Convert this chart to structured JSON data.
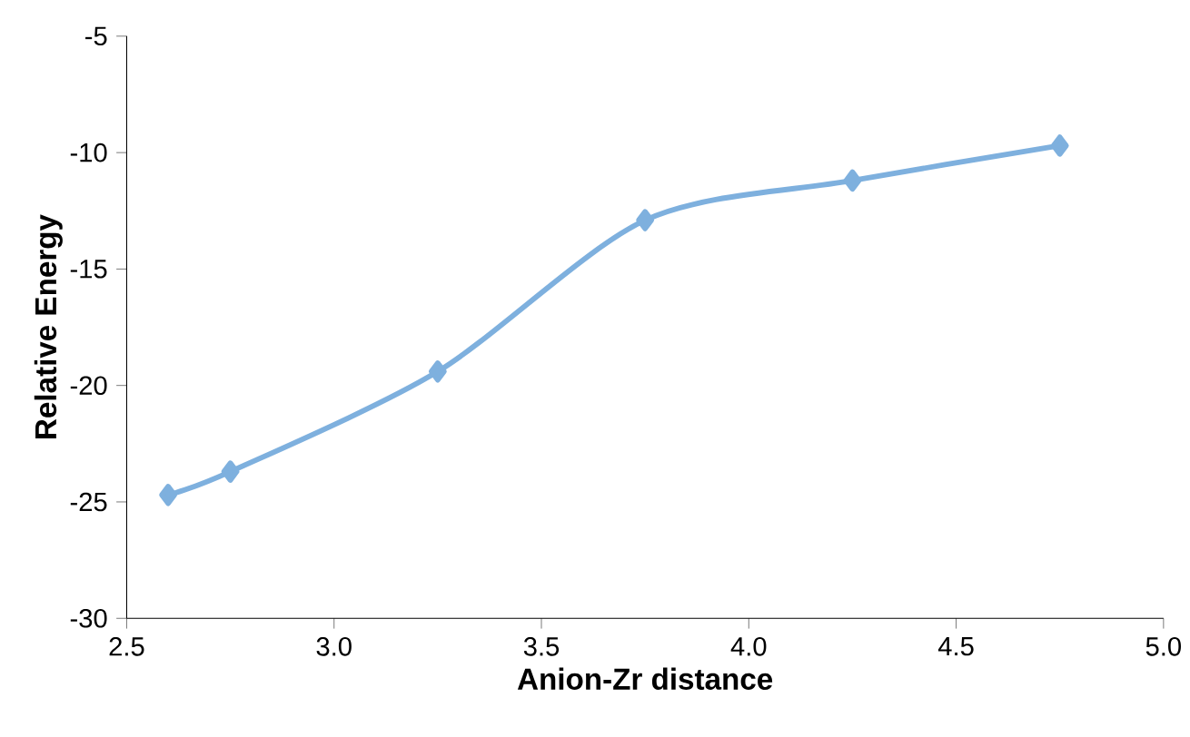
{
  "chart_data": {
    "type": "line",
    "xlabel": "Anion-Zr distance",
    "ylabel": "Relative Energy",
    "x": [
      2.6,
      2.75,
      3.25,
      3.75,
      4.25,
      4.75
    ],
    "series": [
      {
        "color": "#7eb0de",
        "values": [
          -24.7,
          -23.7,
          -19.4,
          -12.9,
          -11.2,
          -9.7
        ]
      }
    ],
    "xlim": [
      2.5,
      5.0
    ],
    "ylim": [
      -30,
      -5
    ],
    "xticks": [
      {
        "value": 2.5,
        "label": "2.5"
      },
      {
        "value": 3.0,
        "label": "3.0"
      },
      {
        "value": 3.5,
        "label": "3.5"
      },
      {
        "value": 4.0,
        "label": "4.0"
      },
      {
        "value": 4.5,
        "label": "4.5"
      },
      {
        "value": 5.0,
        "label": "5.0"
      }
    ],
    "yticks": [
      -30,
      -25,
      -20,
      -15,
      -10,
      -5
    ],
    "marker": "diamond",
    "line_style": "solid"
  }
}
